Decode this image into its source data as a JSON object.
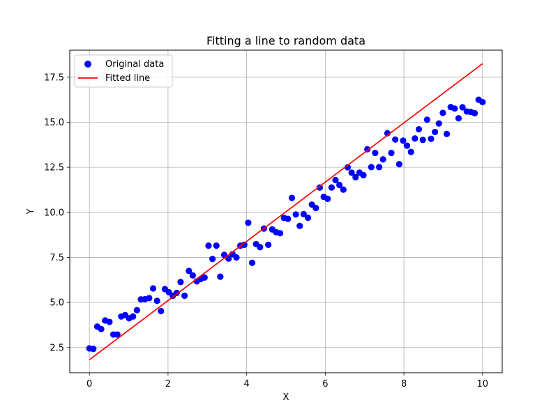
{
  "chart_data": {
    "type": "scatter",
    "title": "Fitting a line to random data",
    "xlabel": "X",
    "ylabel": "Y",
    "xlim": [
      -0.5,
      10.5
    ],
    "ylim": [
      1.1,
      19.0
    ],
    "xticks": [
      0,
      2,
      4,
      6,
      8,
      10
    ],
    "xtick_labels": [
      "0",
      "2",
      "4",
      "6",
      "8",
      "10"
    ],
    "yticks": [
      2.5,
      5.0,
      7.5,
      10.0,
      12.5,
      15.0,
      17.5
    ],
    "ytick_labels": [
      "2.5",
      "5.0",
      "7.5",
      "10.0",
      "12.5",
      "15.0",
      "17.5"
    ],
    "grid": true,
    "legend_position": "top-left",
    "series": [
      {
        "name": "Original data",
        "kind": "scatter",
        "color": "#0000ff",
        "points": [
          [
            0.0,
            2.45
          ],
          [
            0.1,
            2.42
          ],
          [
            0.2,
            3.66
          ],
          [
            0.3,
            3.52
          ],
          [
            0.4,
            4.0
          ],
          [
            0.51,
            3.92
          ],
          [
            0.61,
            3.22
          ],
          [
            0.71,
            3.22
          ],
          [
            0.81,
            4.22
          ],
          [
            0.91,
            4.3
          ],
          [
            1.01,
            4.12
          ],
          [
            1.11,
            4.22
          ],
          [
            1.21,
            4.57
          ],
          [
            1.31,
            5.17
          ],
          [
            1.41,
            5.18
          ],
          [
            1.52,
            5.24
          ],
          [
            1.62,
            5.78
          ],
          [
            1.72,
            5.09
          ],
          [
            1.82,
            4.52
          ],
          [
            1.92,
            5.74
          ],
          [
            2.02,
            5.57
          ],
          [
            2.12,
            5.37
          ],
          [
            2.22,
            5.53
          ],
          [
            2.32,
            6.13
          ],
          [
            2.42,
            5.37
          ],
          [
            2.53,
            6.75
          ],
          [
            2.63,
            6.5
          ],
          [
            2.73,
            6.17
          ],
          [
            2.83,
            6.3
          ],
          [
            2.93,
            6.38
          ],
          [
            3.03,
            8.15
          ],
          [
            3.13,
            7.41
          ],
          [
            3.23,
            8.15
          ],
          [
            3.33,
            6.43
          ],
          [
            3.43,
            7.64
          ],
          [
            3.54,
            7.43
          ],
          [
            3.64,
            7.68
          ],
          [
            3.74,
            7.5
          ],
          [
            3.84,
            8.15
          ],
          [
            3.94,
            8.2
          ],
          [
            4.04,
            9.42
          ],
          [
            4.14,
            7.2
          ],
          [
            4.24,
            8.24
          ],
          [
            4.34,
            8.07
          ],
          [
            4.44,
            9.1
          ],
          [
            4.55,
            8.2
          ],
          [
            4.65,
            9.05
          ],
          [
            4.75,
            8.9
          ],
          [
            4.85,
            8.84
          ],
          [
            4.95,
            9.69
          ],
          [
            5.05,
            9.64
          ],
          [
            5.15,
            10.8
          ],
          [
            5.25,
            9.88
          ],
          [
            5.35,
            9.25
          ],
          [
            5.45,
            9.9
          ],
          [
            5.56,
            9.7
          ],
          [
            5.66,
            10.43
          ],
          [
            5.76,
            10.24
          ],
          [
            5.86,
            11.38
          ],
          [
            5.96,
            10.86
          ],
          [
            6.06,
            10.75
          ],
          [
            6.16,
            11.38
          ],
          [
            6.26,
            11.79
          ],
          [
            6.36,
            11.52
          ],
          [
            6.46,
            11.26
          ],
          [
            6.57,
            12.5
          ],
          [
            6.67,
            12.2
          ],
          [
            6.77,
            11.95
          ],
          [
            6.87,
            12.2
          ],
          [
            6.97,
            12.06
          ],
          [
            7.07,
            13.5
          ],
          [
            7.17,
            12.51
          ],
          [
            7.27,
            13.3
          ],
          [
            7.37,
            12.51
          ],
          [
            7.47,
            12.94
          ],
          [
            7.58,
            14.39
          ],
          [
            7.68,
            13.3
          ],
          [
            7.78,
            14.04
          ],
          [
            7.88,
            12.67
          ],
          [
            7.98,
            13.98
          ],
          [
            8.08,
            13.7
          ],
          [
            8.18,
            13.35
          ],
          [
            8.28,
            14.1
          ],
          [
            8.38,
            14.61
          ],
          [
            8.48,
            14.02
          ],
          [
            8.59,
            15.14
          ],
          [
            8.69,
            14.08
          ],
          [
            8.79,
            14.46
          ],
          [
            8.89,
            14.93
          ],
          [
            8.99,
            15.52
          ],
          [
            9.09,
            14.35
          ],
          [
            9.19,
            15.84
          ],
          [
            9.29,
            15.76
          ],
          [
            9.39,
            15.22
          ],
          [
            9.49,
            15.83
          ],
          [
            9.6,
            15.6
          ],
          [
            9.7,
            15.57
          ],
          [
            9.8,
            15.5
          ],
          [
            9.9,
            16.25
          ],
          [
            10.0,
            16.12
          ]
        ]
      },
      {
        "name": "Fitted line",
        "kind": "line",
        "color": "#ff0000",
        "x": [
          0,
          10
        ],
        "y": [
          1.82,
          18.25
        ]
      }
    ]
  }
}
